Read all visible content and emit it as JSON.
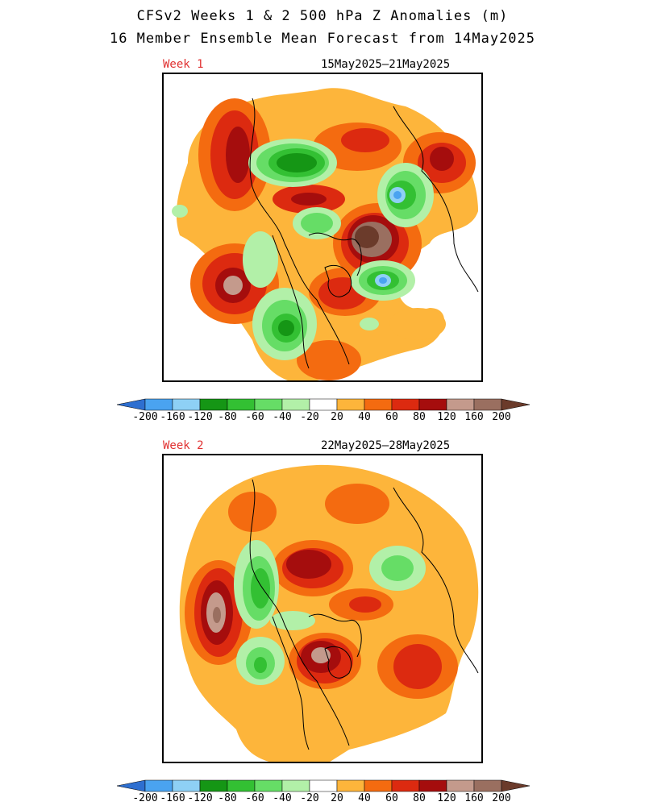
{
  "header": {
    "title_line1": "CFSv2 Weeks 1 & 2 500 hPa Z Anomalies (m)",
    "title_line2": "16 Member Ensemble Mean Forecast from 14May2025"
  },
  "panels": [
    {
      "week_label": "Week 1",
      "date_range": "15May2025–21May2025"
    },
    {
      "week_label": "Week 2",
      "date_range": "22May2025–28May2025"
    }
  ],
  "colorbar": {
    "labels": [
      "-200",
      "-160",
      "-120",
      "-80",
      "-60",
      "-40",
      "-20",
      "20",
      "40",
      "60",
      "80",
      "120",
      "160",
      "200"
    ],
    "colors": [
      "#2e6fd0",
      "#4aa3f0",
      "#8ed0f5",
      "#159615",
      "#33c033",
      "#66dd66",
      "#b2f0a8",
      "#ffffff",
      "#fdb53b",
      "#f46b10",
      "#dc2a10",
      "#a50d0d",
      "#c49a8c",
      "#9a6f60",
      "#6b3b2b"
    ]
  }
}
